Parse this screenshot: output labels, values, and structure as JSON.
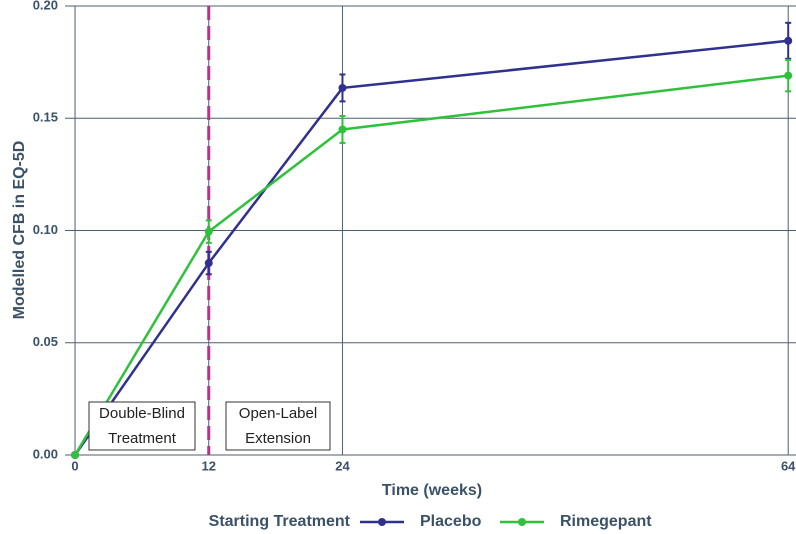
{
  "chart_data": {
    "type": "line",
    "x_label": "Time (weeks)",
    "y_label": "Modelled CFB in EQ-5D",
    "x": [
      0,
      12,
      24,
      64
    ],
    "series": [
      {
        "name": "Placebo",
        "color": "#30308f",
        "values": [
          0,
          0.0855,
          0.1635,
          0.1845
        ],
        "errors": [
          0,
          0.005,
          0.006,
          0.008
        ]
      },
      {
        "name": "Rimegepant",
        "color": "#2fc13c",
        "values": [
          0,
          0.0995,
          0.145,
          0.169
        ],
        "errors": [
          0,
          0.005,
          0.006,
          0.007
        ]
      }
    ],
    "xlim": [
      -0.9,
      64.7
    ],
    "ylim": [
      0,
      0.2
    ],
    "xticks": [
      0,
      12,
      24,
      64
    ],
    "yticks": [
      {
        "value": 0,
        "label": "0.00"
      },
      {
        "value": 0.05,
        "label": "0.05"
      },
      {
        "value": 0.1,
        "label": "0.10"
      },
      {
        "value": 0.15,
        "label": "0.15"
      },
      {
        "value": 0.2,
        "label": "0.20"
      }
    ],
    "grid": true,
    "vline": {
      "x": 12,
      "color": "#b5348a"
    },
    "annotations": [
      {
        "lines": [
          "Double-Blind",
          "Treatment"
        ]
      },
      {
        "lines": [
          "Open-Label",
          "Extension"
        ]
      }
    ],
    "legend_title": "Starting Treatment",
    "legend_position": "bottom"
  }
}
